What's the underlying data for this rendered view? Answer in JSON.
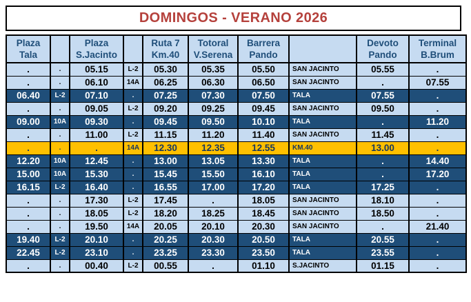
{
  "title": "DOMINGOS - VERANO 2026",
  "colors": {
    "title_text": "#B5413C",
    "header_bg": "#C6DBF1",
    "header_text": "#1F4E79",
    "row_light_bg": "#C6DBF1",
    "row_light_text": "#000000",
    "row_dark_bg": "#1F4E79",
    "row_dark_text": "#FFFFFF",
    "row_gold_bg": "#FFC000",
    "row_gold_text": "#17375E",
    "grid": "#000000"
  },
  "table": {
    "columns": [
      {
        "id": "plaza-tala",
        "line1": "Plaza",
        "line2": "Tala"
      },
      {
        "id": "route-code-1",
        "line1": "",
        "line2": ""
      },
      {
        "id": "plaza-s-jacinto",
        "line1": "Plaza",
        "line2": "S.Jacinto"
      },
      {
        "id": "route-code-2",
        "line1": "",
        "line2": ""
      },
      {
        "id": "ruta-7-km-40",
        "line1": "Ruta 7",
        "line2": "Km.40"
      },
      {
        "id": "totoral-v-serena",
        "line1": "Totoral",
        "line2": "V.Serena"
      },
      {
        "id": "barrera-pando",
        "line1": "Barrera",
        "line2": "Pando"
      },
      {
        "id": "destination",
        "line1": "",
        "line2": ""
      },
      {
        "id": "devoto-pando",
        "line1": "Devoto",
        "line2": "Pando"
      },
      {
        "id": "terminal-b-brum",
        "line1": "Terminal",
        "line2": "B.Brum"
      }
    ],
    "rows": [
      {
        "style": "light",
        "cells": [
          ".",
          ".",
          "05.15",
          "L-2",
          "05.30",
          "05.35",
          "05.50",
          "SAN JACINTO",
          "05.55",
          "."
        ]
      },
      {
        "style": "light",
        "cells": [
          ".",
          ".",
          "06.10",
          "14A",
          "06.25",
          "06.30",
          "06.50",
          "SAN JACINTO",
          ".",
          "07.55"
        ]
      },
      {
        "style": "dark",
        "cells": [
          "06.40",
          "L-2",
          "07.10",
          ".",
          "07.25",
          "07.30",
          "07.50",
          "TALA",
          "07.55",
          "."
        ]
      },
      {
        "style": "light",
        "cells": [
          ".",
          ".",
          "09.05",
          "L-2",
          "09.20",
          "09.25",
          "09.45",
          "SAN JACINTO",
          "09.50",
          "."
        ]
      },
      {
        "style": "dark",
        "cells": [
          "09.00",
          "10A",
          "09.30",
          ".",
          "09.45",
          "09.50",
          "10.10",
          "TALA",
          ".",
          "11.20"
        ]
      },
      {
        "style": "light",
        "cells": [
          ".",
          ".",
          "11.00",
          "L-2",
          "11.15",
          "11.20",
          "11.40",
          "SAN JACINTO",
          "11.45",
          "."
        ]
      },
      {
        "style": "gold",
        "cells": [
          ".",
          ".",
          ".",
          "14A",
          "12.30",
          "12.35",
          "12.55",
          "KM.40",
          "13.00",
          "."
        ]
      },
      {
        "style": "dark",
        "cells": [
          "12.20",
          "10A",
          "12.45",
          ".",
          "13.00",
          "13.05",
          "13.30",
          "TALA",
          ".",
          "14.40"
        ]
      },
      {
        "style": "dark",
        "cells": [
          "15.00",
          "10A",
          "15.30",
          ".",
          "15.45",
          "15.50",
          "16.10",
          "TALA",
          ".",
          "17.20"
        ]
      },
      {
        "style": "dark",
        "cells": [
          "16.15",
          "L-2",
          "16.40",
          ".",
          "16.55",
          "17.00",
          "17.20",
          "TALA",
          "17.25",
          "."
        ]
      },
      {
        "style": "light",
        "cells": [
          ".",
          ".",
          "17.30",
          "L-2",
          "17.45",
          ".",
          "18.05",
          "SAN JACINTO",
          "18.10",
          "."
        ]
      },
      {
        "style": "light",
        "cells": [
          ".",
          ".",
          "18.05",
          "L-2",
          "18.20",
          "18.25",
          "18.45",
          "SAN JACINTO",
          "18.50",
          "."
        ]
      },
      {
        "style": "light",
        "cells": [
          ".",
          ".",
          "19.50",
          "14A",
          "20.05",
          "20.10",
          "20.30",
          "SAN JACINTO",
          ".",
          "21.40"
        ]
      },
      {
        "style": "dark",
        "cells": [
          "19.40",
          "L-2",
          "20.10",
          ".",
          "20.25",
          "20.30",
          "20.50",
          "TALA",
          "20.55",
          "."
        ]
      },
      {
        "style": "dark",
        "cells": [
          "22.45",
          "L-2",
          "23.10",
          ".",
          "23.25",
          "23.30",
          "23.50",
          "TALA",
          "23.55",
          "."
        ]
      },
      {
        "style": "light",
        "cells": [
          ".",
          ".",
          "00.40",
          "L-2",
          "00.55",
          ".",
          "01.10",
          "S.JACINTO",
          "01.15",
          "."
        ]
      }
    ]
  }
}
